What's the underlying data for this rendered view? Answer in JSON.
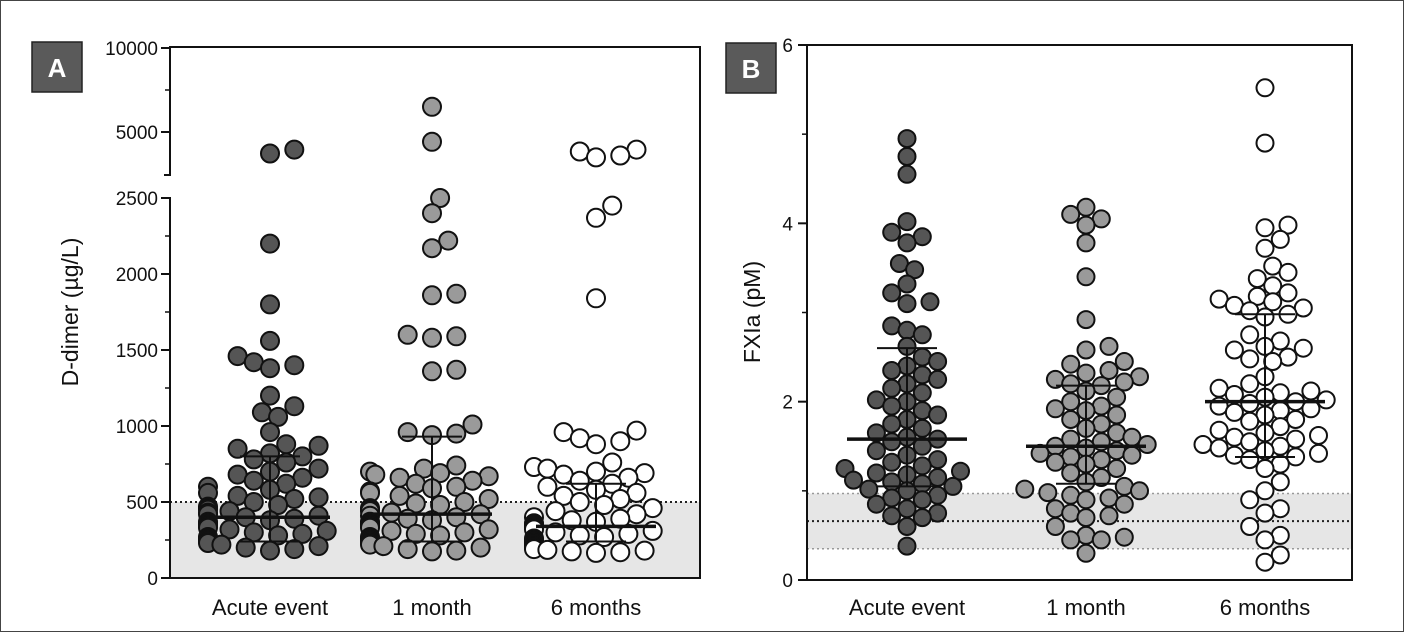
{
  "chart_data": [
    {
      "panel": "A",
      "type": "scatter",
      "ylabel": "D-dimer (µg/L)",
      "y_axis_segments": [
        {
          "range": [
            0,
            2500
          ],
          "ticks": [
            0,
            500,
            1000,
            1500,
            2000,
            2500
          ],
          "tick_labels": [
            "0",
            "500",
            "1000",
            "1500",
            "2000",
            "2500"
          ]
        },
        {
          "range": [
            2800,
            10000
          ],
          "ticks": [
            5000,
            10000
          ],
          "tick_labels": [
            "5000",
            "10000"
          ]
        }
      ],
      "reference_line": 500,
      "reference_band": [
        0,
        500
      ],
      "categories": [
        "Acute event",
        "1 month",
        "6 months"
      ],
      "series": [
        {
          "category": "Acute event",
          "color": "#555555",
          "median": 400,
          "iqr": [
            240,
            800
          ],
          "values": [
            4100,
            3900,
            2200,
            1800,
            1560,
            1460,
            1420,
            1400,
            1380,
            1200,
            1130,
            1090,
            1060,
            960,
            880,
            870,
            850,
            820,
            800,
            780,
            760,
            720,
            700,
            680,
            660,
            640,
            620,
            600,
            580,
            560,
            540,
            530,
            520,
            500,
            480,
            470,
            460,
            450,
            440,
            430,
            420,
            410,
            400,
            390,
            380,
            370,
            360,
            350,
            340,
            330,
            320,
            310,
            300,
            290,
            280,
            270,
            260,
            250,
            240,
            230,
            220,
            210,
            200,
            190,
            180
          ]
        },
        {
          "category": "1 month",
          "color": "#9a9a9a",
          "median": 420,
          "iqr": [
            240,
            930
          ],
          "values": [
            6500,
            4500,
            2500,
            2400,
            2220,
            2170,
            1870,
            1860,
            1600,
            1590,
            1580,
            1370,
            1360,
            1010,
            960,
            950,
            940,
            740,
            720,
            700,
            690,
            680,
            670,
            660,
            640,
            620,
            600,
            590,
            570,
            560,
            540,
            520,
            500,
            490,
            480,
            460,
            450,
            440,
            430,
            420,
            410,
            400,
            390,
            380,
            370,
            360,
            350,
            340,
            330,
            320,
            310,
            300,
            290,
            280,
            270,
            260,
            250,
            240,
            230,
            220,
            210,
            200,
            190,
            180,
            175
          ]
        },
        {
          "category": "6 months",
          "color": "#ffffff",
          "median": 340,
          "iqr": [
            240,
            620
          ],
          "values": [
            4100,
            4000,
            3800,
            3700,
            2450,
            2370,
            1840,
            970,
            960,
            920,
            900,
            880,
            760,
            730,
            720,
            700,
            690,
            680,
            660,
            640,
            620,
            600,
            580,
            560,
            540,
            520,
            500,
            480,
            460,
            440,
            420,
            400,
            390,
            380,
            370,
            360,
            350,
            340,
            330,
            320,
            310,
            300,
            290,
            280,
            270,
            260,
            250,
            240,
            230,
            220,
            210,
            200,
            190,
            185,
            180,
            175,
            170,
            165
          ]
        }
      ]
    },
    {
      "panel": "B",
      "type": "scatter",
      "ylabel": "FXIa (pM)",
      "ylim": [
        0,
        6
      ],
      "ticks": [
        0,
        2,
        4,
        6
      ],
      "tick_labels": [
        "0",
        "2",
        "4",
        "6"
      ],
      "reference_line": 0.66,
      "reference_band": [
        0.35,
        0.97
      ],
      "categories": [
        "Acute event",
        "1 month",
        "6 months"
      ],
      "series": [
        {
          "category": "Acute event",
          "color": "#555555",
          "median": 1.58,
          "iqr": [
            1.05,
            2.6
          ],
          "values": [
            4.95,
            4.75,
            4.55,
            4.02,
            3.9,
            3.85,
            3.78,
            3.55,
            3.48,
            3.32,
            3.22,
            3.12,
            3.1,
            2.85,
            2.8,
            2.75,
            2.62,
            2.5,
            2.45,
            2.4,
            2.35,
            2.3,
            2.25,
            2.2,
            2.15,
            2.1,
            2.02,
            2.0,
            1.95,
            1.9,
            1.85,
            1.8,
            1.75,
            1.7,
            1.65,
            1.6,
            1.58,
            1.55,
            1.5,
            1.45,
            1.4,
            1.35,
            1.32,
            1.28,
            1.25,
            1.22,
            1.2,
            1.18,
            1.15,
            1.12,
            1.1,
            1.08,
            1.05,
            1.02,
            1.0,
            0.95,
            0.92,
            0.9,
            0.85,
            0.8,
            0.75,
            0.72,
            0.7,
            0.6,
            0.38
          ]
        },
        {
          "category": "1 month",
          "color": "#9a9a9a",
          "median": 1.5,
          "iqr": [
            1.08,
            2.18
          ],
          "values": [
            4.18,
            4.1,
            4.05,
            3.98,
            3.78,
            3.4,
            2.92,
            2.62,
            2.58,
            2.45,
            2.42,
            2.35,
            2.32,
            2.28,
            2.25,
            2.22,
            2.2,
            2.18,
            2.12,
            2.05,
            2.0,
            1.95,
            1.92,
            1.9,
            1.85,
            1.8,
            1.75,
            1.7,
            1.65,
            1.6,
            1.58,
            1.55,
            1.52,
            1.5,
            1.48,
            1.45,
            1.42,
            1.4,
            1.38,
            1.35,
            1.32,
            1.3,
            1.25,
            1.2,
            1.15,
            1.1,
            1.05,
            1.02,
            1.0,
            0.98,
            0.95,
            0.92,
            0.9,
            0.85,
            0.8,
            0.75,
            0.72,
            0.7,
            0.6,
            0.5,
            0.48,
            0.45,
            0.45,
            0.3
          ]
        },
        {
          "category": "6 months",
          "color": "#ffffff",
          "median": 2.0,
          "iqr": [
            1.38,
            2.98
          ],
          "values": [
            5.52,
            4.9,
            3.98,
            3.95,
            3.82,
            3.72,
            3.52,
            3.45,
            3.38,
            3.3,
            3.22,
            3.18,
            3.15,
            3.12,
            3.08,
            3.05,
            3.02,
            2.98,
            2.95,
            2.75,
            2.68,
            2.62,
            2.6,
            2.58,
            2.5,
            2.48,
            2.45,
            2.28,
            2.2,
            2.15,
            2.12,
            2.1,
            2.08,
            2.05,
            2.02,
            2.0,
            1.98,
            1.95,
            1.92,
            1.9,
            1.88,
            1.85,
            1.8,
            1.78,
            1.72,
            1.68,
            1.65,
            1.62,
            1.6,
            1.58,
            1.55,
            1.52,
            1.5,
            1.48,
            1.45,
            1.42,
            1.4,
            1.38,
            1.35,
            1.3,
            1.25,
            1.1,
            1.0,
            0.9,
            0.8,
            0.75,
            0.6,
            0.5,
            0.45,
            0.28,
            0.2
          ]
        }
      ]
    }
  ]
}
